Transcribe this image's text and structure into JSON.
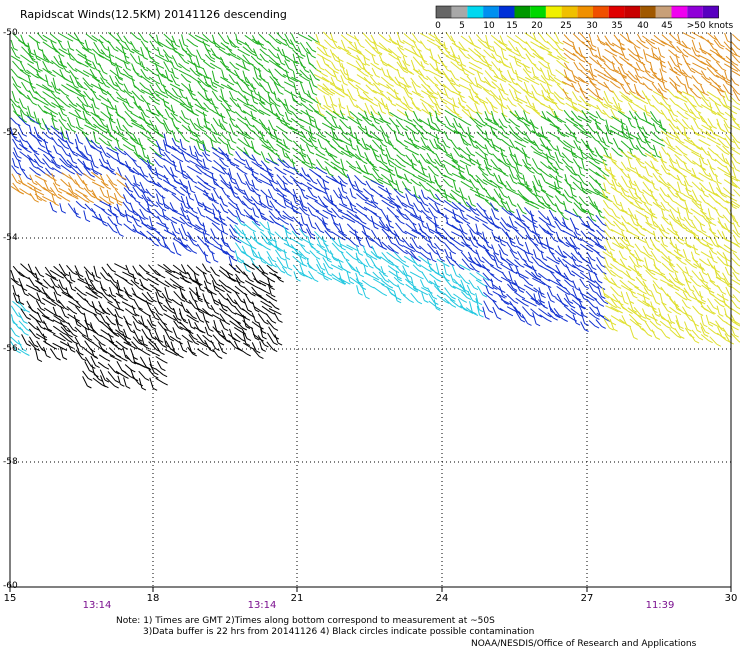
{
  "header": {
    "title": "Rapidscat Winds(12.5KM) 20141126 descending"
  },
  "legend": {
    "labels": [
      "0",
      "5",
      "10",
      "15",
      "20",
      "25",
      "30",
      "35",
      "40",
      "45",
      ">50 knots"
    ],
    "colors": [
      "#666666",
      "#a8a8a8",
      "#00d8f0",
      "#0090f0",
      "#0030d8",
      "#009800",
      "#00d800",
      "#f0f000",
      "#f0c000",
      "#f09000",
      "#f05000",
      "#e00000",
      "#c80000",
      "#a05800",
      "#c8a078",
      "#f000f0",
      "#9000d8",
      "#5800c0"
    ]
  },
  "axes": {
    "y_ticks": [
      "-50",
      "-52",
      "-54",
      "-56",
      "-58",
      "-60"
    ],
    "x_ticks": [
      "15",
      "18",
      "21",
      "24",
      "27",
      "30"
    ],
    "time_labels": [
      "13:14",
      "13:14",
      "11:39"
    ]
  },
  "wind_colors": {
    "black": "#000000",
    "cyan": "#22c8e0",
    "blue": "#1030d0",
    "green": "#20b020",
    "yellow": "#e0e030",
    "orange": "#e09020"
  },
  "footer": {
    "note_line1": "Note: 1) Times are GMT 2)Times along bottom correspond to measurement at ~50S",
    "note_line2": "3)Data buffer is 22 hrs from 20141126 4) Black circles indicate possible contamination",
    "source": "NOAA/NESDIS/Office of Research and Applications"
  }
}
